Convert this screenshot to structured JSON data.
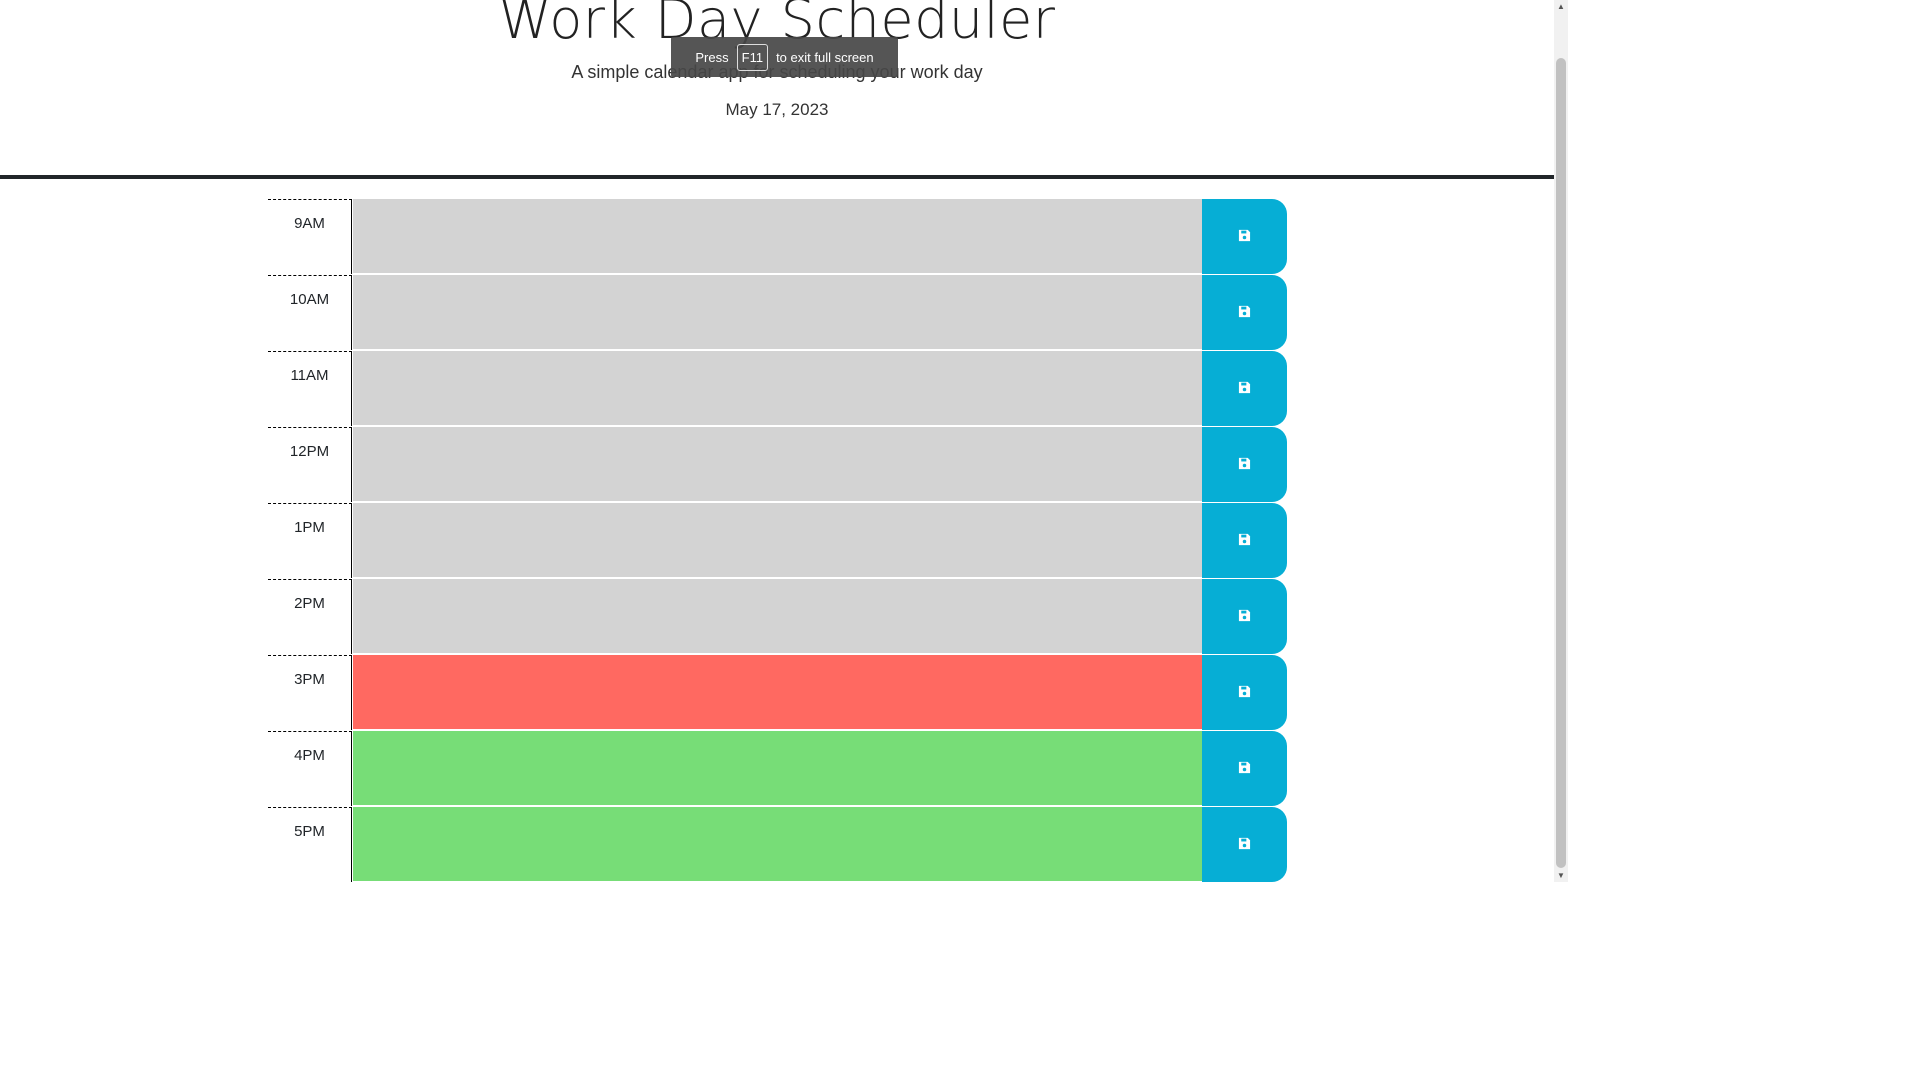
{
  "header": {
    "title": "Work Day Scheduler",
    "subtitle": "A simple calendar app for scheduling your work day",
    "current_date": "May 17, 2023"
  },
  "fullscreen_notice": {
    "prefix": "Press",
    "key": "F11",
    "suffix": "to exit full screen"
  },
  "colors": {
    "past": "#d3d3d3",
    "present": "#ff6961",
    "future": "#77dd77",
    "save_button": "#06aed5"
  },
  "time_blocks": [
    {
      "hour": "9AM",
      "status": "past",
      "text": ""
    },
    {
      "hour": "10AM",
      "status": "past",
      "text": ""
    },
    {
      "hour": "11AM",
      "status": "past",
      "text": ""
    },
    {
      "hour": "12PM",
      "status": "past",
      "text": ""
    },
    {
      "hour": "1PM",
      "status": "past",
      "text": ""
    },
    {
      "hour": "2PM",
      "status": "past",
      "text": ""
    },
    {
      "hour": "3PM",
      "status": "present",
      "text": ""
    },
    {
      "hour": "4PM",
      "status": "future",
      "text": ""
    },
    {
      "hour": "5PM",
      "status": "future",
      "text": ""
    }
  ],
  "icons": {
    "save": "save-icon"
  }
}
